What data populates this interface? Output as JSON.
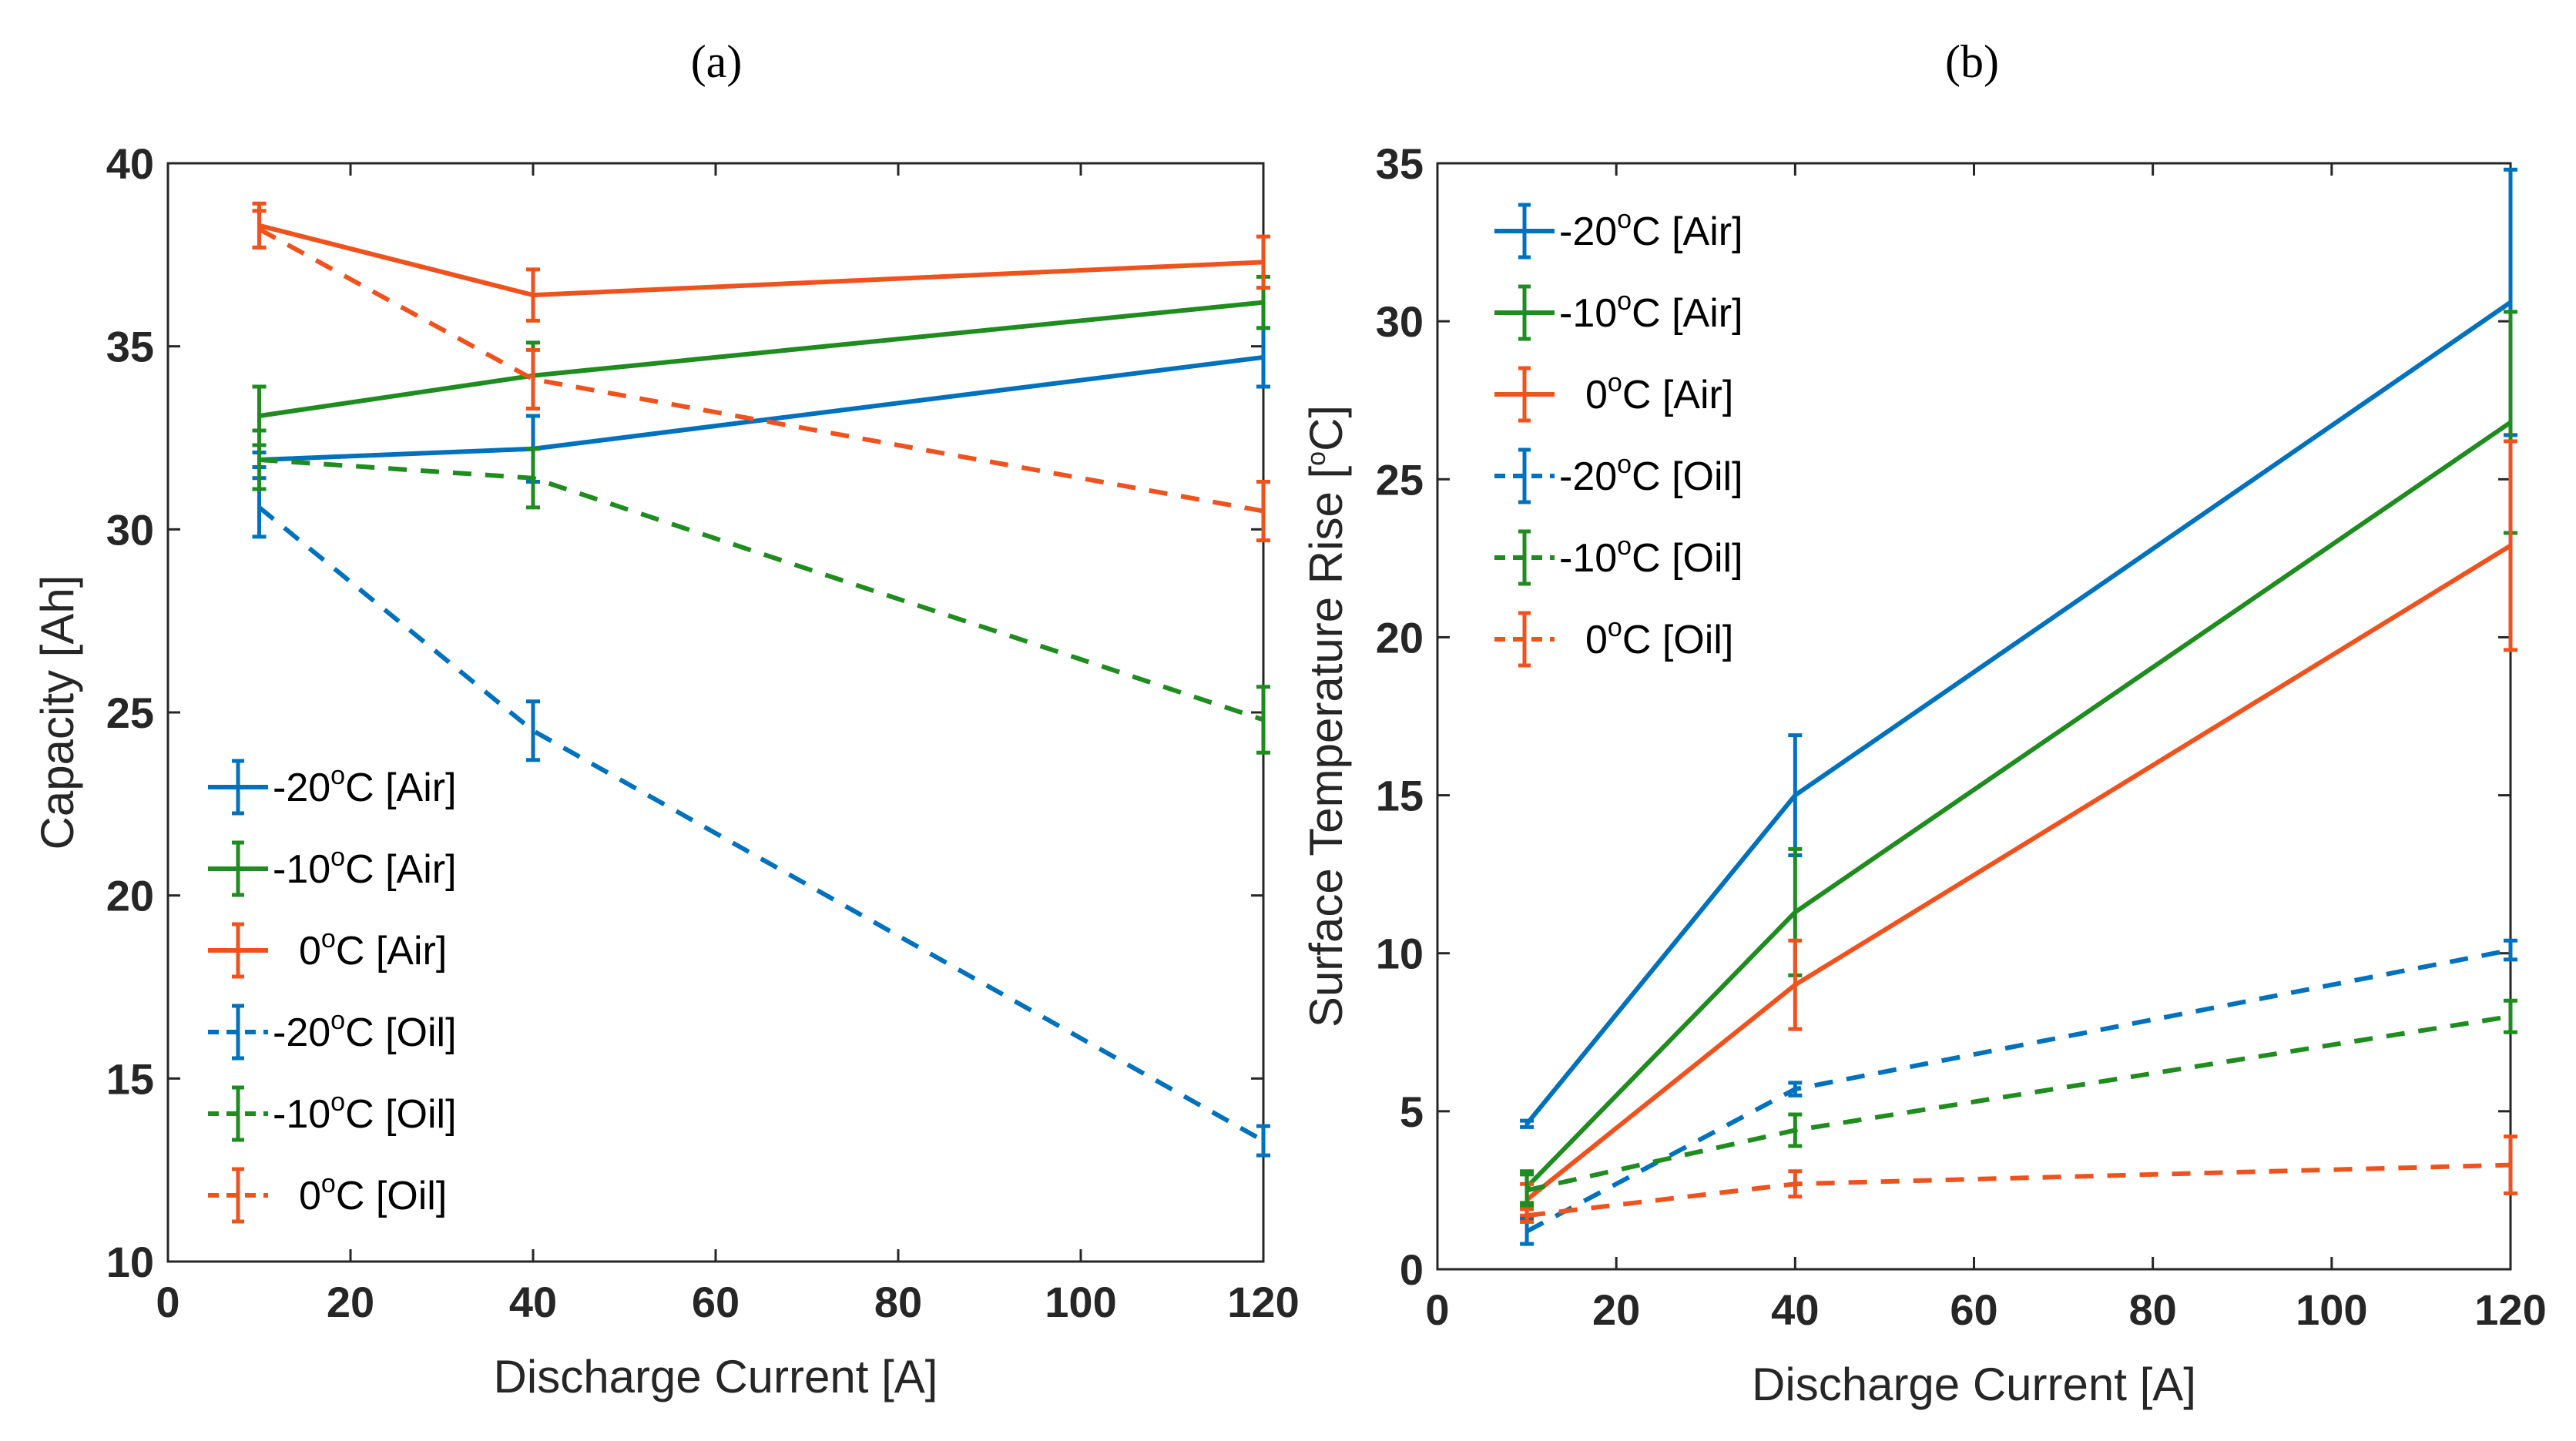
{
  "colors": {
    "blue": "#0072BD",
    "green": "#1E8C1E",
    "orange": "#F0521E"
  },
  "chart_data": [
    {
      "panel_label": "(a)",
      "type": "line",
      "xlabel": "Discharge Current [A]",
      "ylabel": "Capacity [Ah]",
      "xlim": [
        0,
        120
      ],
      "ylim": [
        10,
        40
      ],
      "xticks": [
        0,
        20,
        40,
        60,
        80,
        100,
        120
      ],
      "yticks": [
        10,
        15,
        20,
        25,
        30,
        35,
        40
      ],
      "x": [
        10,
        40,
        120
      ],
      "legend_position": "lower-left",
      "series": [
        {
          "name": "-20°C [Air]",
          "label_parts": [
            "-20",
            "o",
            "C [Air]"
          ],
          "color": "blue",
          "dash": "solid",
          "values": [
            31.9,
            32.2,
            34.7
          ],
          "errors": [
            0.2,
            0.9,
            0.8
          ]
        },
        {
          "name": "-10°C [Air]",
          "label_parts": [
            "-10",
            "o",
            "C [Air]"
          ],
          "color": "green",
          "dash": "solid",
          "values": [
            33.1,
            34.2,
            36.2
          ],
          "errors": [
            0.8,
            0.9,
            0.7
          ]
        },
        {
          "name": "0°C [Air]",
          "label_parts": [
            "0",
            "o",
            "C [Air]"
          ],
          "color": "orange",
          "dash": "solid",
          "values": [
            38.3,
            36.4,
            37.3
          ],
          "errors": [
            0.6,
            0.7,
            0.7
          ]
        },
        {
          "name": "-20°C [Oil]",
          "label_parts": [
            "-20",
            "o",
            "C [Oil]"
          ],
          "color": "blue",
          "dash": "dashed",
          "values": [
            30.6,
            24.5,
            13.3
          ],
          "errors": [
            0.8,
            0.8,
            0.4
          ]
        },
        {
          "name": "-10°C [Oil]",
          "label_parts": [
            "-10",
            "o",
            "C [Oil]"
          ],
          "color": "green",
          "dash": "dashed",
          "values": [
            31.9,
            31.4,
            24.8
          ],
          "errors": [
            0.8,
            0.8,
            0.9
          ]
        },
        {
          "name": "0°C [Oil]",
          "label_parts": [
            "0",
            "o",
            "C [Oil]"
          ],
          "color": "orange",
          "dash": "dashed",
          "values": [
            38.2,
            34.1,
            30.5
          ],
          "errors": [
            0.5,
            0.8,
            0.8
          ]
        }
      ]
    },
    {
      "panel_label": "(b)",
      "type": "line",
      "xlabel": "Discharge Current [A]",
      "ylabel_parts": [
        "Surface Temperature Rise [",
        "o",
        "C]"
      ],
      "xlim": [
        0,
        120
      ],
      "ylim": [
        0,
        35
      ],
      "xticks": [
        0,
        20,
        40,
        60,
        80,
        100,
        120
      ],
      "yticks": [
        0,
        5,
        10,
        15,
        20,
        25,
        30,
        35
      ],
      "x": [
        10,
        40,
        120
      ],
      "legend_position": "top-left",
      "series": [
        {
          "name": "-20°C [Air]",
          "label_parts": [
            "-20",
            "o",
            "C [Air]"
          ],
          "color": "blue",
          "dash": "solid",
          "values": [
            4.6,
            15.0,
            30.6
          ],
          "errors": [
            0.1,
            1.9,
            4.2
          ]
        },
        {
          "name": "-10°C [Air]",
          "label_parts": [
            "-10",
            "o",
            "C [Air]"
          ],
          "color": "green",
          "dash": "solid",
          "values": [
            2.6,
            11.3,
            26.8
          ],
          "errors": [
            0.5,
            2.0,
            3.5
          ]
        },
        {
          "name": "0°C [Air]",
          "label_parts": [
            "0",
            "o",
            "C [Air]"
          ],
          "color": "orange",
          "dash": "solid",
          "values": [
            2.2,
            9.0,
            22.9
          ],
          "errors": [
            0.5,
            1.4,
            3.3
          ]
        },
        {
          "name": "-20°C [Oil]",
          "label_parts": [
            "-20",
            "o",
            "C [Oil]"
          ],
          "color": "blue",
          "dash": "dashed",
          "values": [
            1.2,
            5.7,
            10.1
          ],
          "errors": [
            0.4,
            0.2,
            0.3
          ]
        },
        {
          "name": "-10°C [Oil]",
          "label_parts": [
            "-10",
            "o",
            "C [Oil]"
          ],
          "color": "green",
          "dash": "dashed",
          "values": [
            2.5,
            4.4,
            8.0
          ],
          "errors": [
            0.5,
            0.5,
            0.5
          ]
        },
        {
          "name": "0°C [Oil]",
          "label_parts": [
            "0",
            "o",
            "C [Oil]"
          ],
          "color": "orange",
          "dash": "dashed",
          "values": [
            1.7,
            2.7,
            3.3
          ],
          "errors": [
            0.2,
            0.4,
            0.9
          ]
        }
      ]
    }
  ]
}
